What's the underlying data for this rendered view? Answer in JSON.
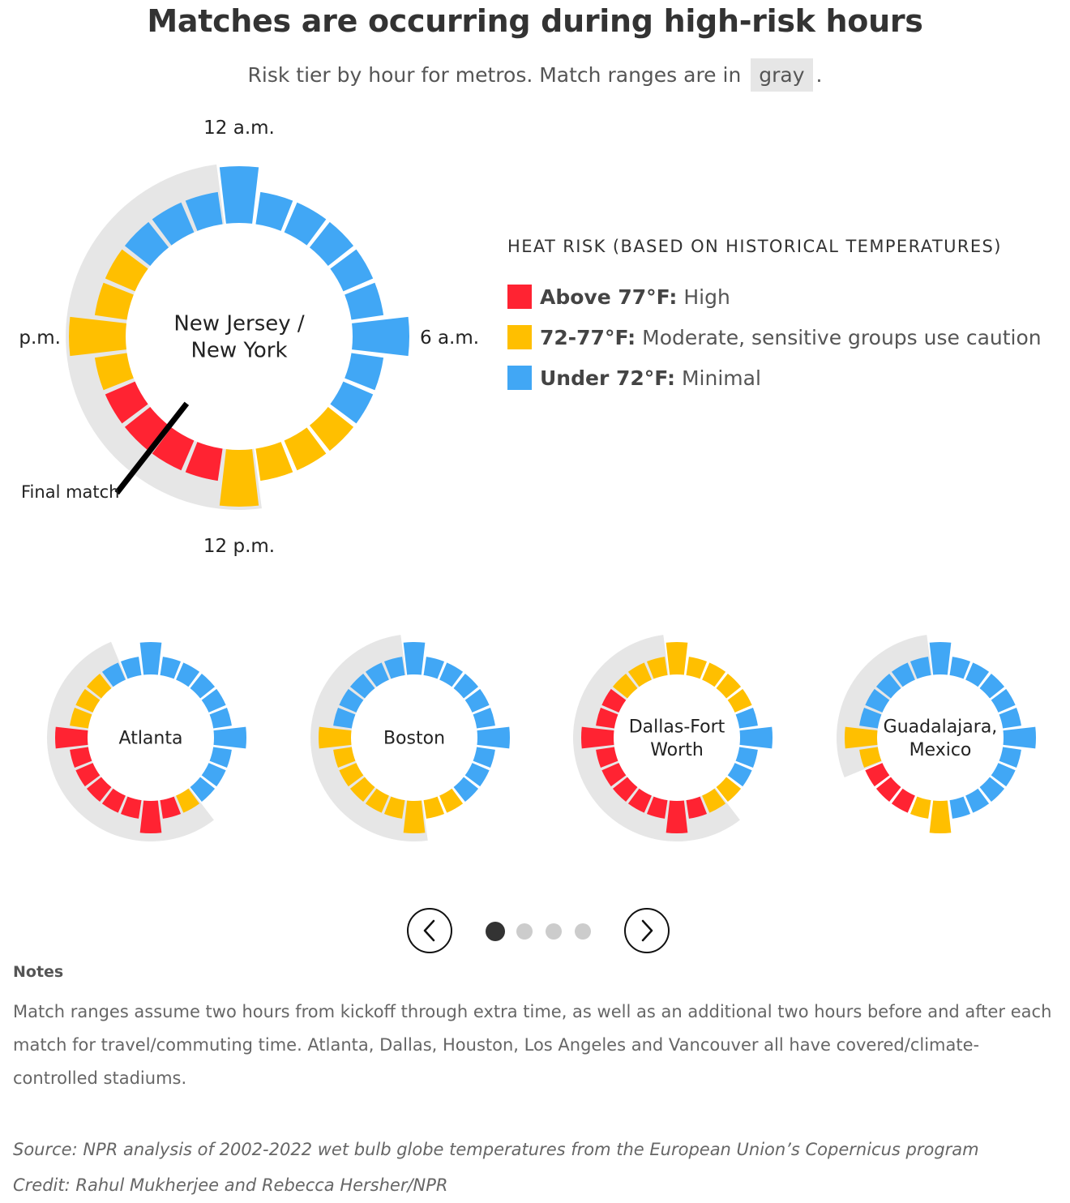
{
  "title": "Matches are occurring during high-risk hours",
  "subtitle": {
    "before": "Risk tier by hour for metros. Match ranges are in",
    "chip": "gray",
    "after": "."
  },
  "legend": {
    "title": "HEAT RISK (BASED ON HISTORICAL TEMPERATURES)",
    "items": [
      {
        "key": "high",
        "bold": "Above 77°F:",
        "text": "High",
        "color": "#ff2332"
      },
      {
        "key": "moderate",
        "bold": "72-77°F:",
        "text": "Moderate, sensitive groups use caution",
        "color": "#ffbf00"
      },
      {
        "key": "minimal",
        "bold": "Under 72°F:",
        "text": "Minimal",
        "color": "#41a7f5"
      }
    ]
  },
  "colors": {
    "H": "#ff2332",
    "M": "#ffbf00",
    "L": "#41a7f5",
    "range": "#e6e6e6"
  },
  "chart_data": [
    {
      "type": "radial-bar",
      "metro": "New Jersey / New York",
      "hour_labels": [
        "12 a.m.",
        "6 a.m.",
        "12 p.m.",
        "p.m."
      ],
      "hours": [
        0,
        1,
        2,
        3,
        4,
        5,
        6,
        7,
        8,
        9,
        10,
        11,
        12,
        13,
        14,
        15,
        16,
        17,
        18,
        19,
        20,
        21,
        22,
        23
      ],
      "risk": [
        "L",
        "L",
        "L",
        "L",
        "L",
        "L",
        "L",
        "L",
        "L",
        "M",
        "M",
        "M",
        "M",
        "H",
        "H",
        "H",
        "H",
        "M",
        "M",
        "M",
        "M",
        "L",
        "L",
        "L"
      ],
      "match_range_hours": [
        12,
        24
      ],
      "final_match_hour": 14.5,
      "annotation": "Final match"
    },
    {
      "type": "radial-bar",
      "metro": "Atlanta",
      "risk": [
        "L",
        "L",
        "L",
        "L",
        "L",
        "L",
        "L",
        "L",
        "L",
        "L",
        "M",
        "H",
        "H",
        "H",
        "H",
        "H",
        "H",
        "H",
        "H",
        "M",
        "M",
        "M",
        "L",
        "L"
      ],
      "match_range_hours": [
        10,
        23
      ]
    },
    {
      "type": "radial-bar",
      "metro": "Boston",
      "risk": [
        "L",
        "L",
        "L",
        "L",
        "L",
        "L",
        "L",
        "L",
        "L",
        "L",
        "M",
        "M",
        "M",
        "M",
        "M",
        "M",
        "M",
        "M",
        "M",
        "L",
        "L",
        "L",
        "L",
        "L"
      ],
      "match_range_hours": [
        12,
        24
      ]
    },
    {
      "type": "radial-bar",
      "metro": "Dallas-Fort Worth",
      "risk": [
        "M",
        "M",
        "M",
        "M",
        "M",
        "L",
        "L",
        "L",
        "L",
        "M",
        "M",
        "H",
        "H",
        "H",
        "H",
        "H",
        "H",
        "H",
        "H",
        "H",
        "H",
        "M",
        "M",
        "M"
      ],
      "match_range_hours": [
        10,
        24
      ]
    },
    {
      "type": "radial-bar",
      "metro": "Guadalajara, Mexico",
      "risk": [
        "L",
        "L",
        "L",
        "L",
        "L",
        "L",
        "L",
        "L",
        "L",
        "L",
        "L",
        "L",
        "M",
        "M",
        "H",
        "H",
        "H",
        "M",
        "M",
        "L",
        "L",
        "L",
        "L",
        "L"
      ],
      "match_range_hours": [
        17,
        24
      ]
    }
  ],
  "pager": {
    "prev_label": "Previous",
    "next_label": "Next",
    "pages": 4,
    "current": 1
  },
  "notes": {
    "heading": "Notes",
    "text": "Match ranges assume two hours from kickoff through extra time, as well as an additional two hours before and after each match for travel/commuting time. Atlanta, Dallas, Houston, Los Angeles and Vancouver all have covered/climate-controlled stadiums."
  },
  "source": "Source: NPR analysis of 2002-2022 wet bulb globe temperatures from the European Union’s Copernicus program",
  "credit": "Credit: Rahul Mukherjee and Rebecca Hersher/NPR"
}
